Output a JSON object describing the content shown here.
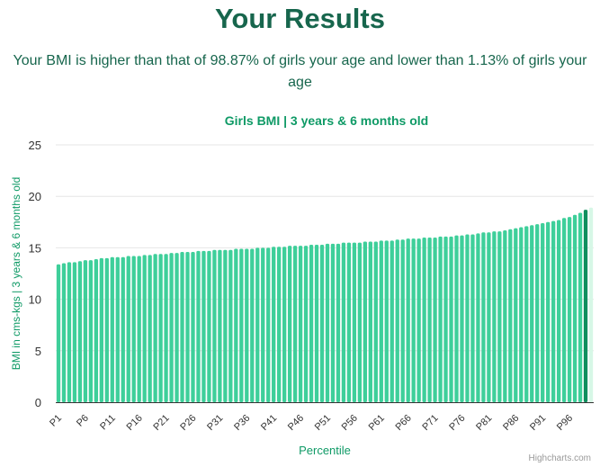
{
  "header": {
    "title": "Your Results",
    "summary": "Your BMI is higher than that of 98.87% of girls your age and lower than 1.13% of girls your age"
  },
  "colors": {
    "title": "#17664d",
    "bar": "#3ecf9a",
    "highlight": "#0f8f5e",
    "faded": "#d7f7e6",
    "chart_title": "#0f9a66",
    "axis_text": "#333333",
    "grid": "#e6e6e6"
  },
  "credits": "Highcharts.com",
  "chart_data": {
    "type": "bar",
    "title": "Girls BMI | 3 years & 6 months old",
    "xlabel": "Percentile",
    "ylabel": "BMI in cms-kgs | 3 years & 6 months old",
    "ylim": [
      0,
      25
    ],
    "yticks": [
      0,
      5,
      10,
      15,
      20,
      25
    ],
    "grid": true,
    "highlight_category": "P99",
    "categories": [
      "P1",
      "P2",
      "P3",
      "P4",
      "P5",
      "P6",
      "P7",
      "P8",
      "P9",
      "P10",
      "P11",
      "P12",
      "P13",
      "P14",
      "P15",
      "P16",
      "P17",
      "P18",
      "P19",
      "P20",
      "P21",
      "P22",
      "P23",
      "P24",
      "P25",
      "P26",
      "P27",
      "P28",
      "P29",
      "P30",
      "P31",
      "P32",
      "P33",
      "P34",
      "P35",
      "P36",
      "P37",
      "P38",
      "P39",
      "P40",
      "P41",
      "P42",
      "P43",
      "P44",
      "P45",
      "P46",
      "P47",
      "P48",
      "P49",
      "P50",
      "P51",
      "P52",
      "P53",
      "P54",
      "P55",
      "P56",
      "P57",
      "P58",
      "P59",
      "P60",
      "P61",
      "P62",
      "P63",
      "P64",
      "P65",
      "P66",
      "P67",
      "P68",
      "P69",
      "P70",
      "P71",
      "P72",
      "P73",
      "P74",
      "P75",
      "P76",
      "P77",
      "P78",
      "P79",
      "P80",
      "P81",
      "P82",
      "P83",
      "P84",
      "P85",
      "P86",
      "P87",
      "P88",
      "P89",
      "P90",
      "P91",
      "P92",
      "P93",
      "P94",
      "P95",
      "P96",
      "P97",
      "P98",
      "P99",
      "P100"
    ],
    "tick_labels": [
      "P1",
      "P6",
      "P11",
      "P16",
      "P21",
      "P26",
      "P31",
      "P36",
      "P41",
      "P46",
      "P51",
      "P56",
      "P61",
      "P66",
      "P71",
      "P76",
      "P81",
      "P86",
      "P91",
      "P96"
    ],
    "values": [
      13.4,
      13.5,
      13.6,
      13.6,
      13.7,
      13.8,
      13.8,
      13.9,
      14.0,
      14.0,
      14.1,
      14.1,
      14.1,
      14.2,
      14.2,
      14.2,
      14.3,
      14.3,
      14.4,
      14.4,
      14.4,
      14.5,
      14.5,
      14.6,
      14.6,
      14.6,
      14.7,
      14.7,
      14.7,
      14.8,
      14.8,
      14.8,
      14.8,
      14.9,
      14.9,
      14.9,
      14.9,
      15.0,
      15.0,
      15.0,
      15.1,
      15.1,
      15.1,
      15.2,
      15.2,
      15.2,
      15.2,
      15.3,
      15.3,
      15.3,
      15.4,
      15.4,
      15.4,
      15.5,
      15.5,
      15.5,
      15.5,
      15.6,
      15.6,
      15.6,
      15.7,
      15.7,
      15.7,
      15.8,
      15.8,
      15.9,
      15.9,
      15.9,
      16.0,
      16.0,
      16.0,
      16.1,
      16.1,
      16.1,
      16.2,
      16.2,
      16.3,
      16.3,
      16.4,
      16.5,
      16.5,
      16.6,
      16.6,
      16.7,
      16.8,
      16.9,
      17.0,
      17.1,
      17.2,
      17.3,
      17.4,
      17.5,
      17.6,
      17.7,
      17.9,
      18.0,
      18.2,
      18.4,
      18.7,
      18.9
    ]
  }
}
